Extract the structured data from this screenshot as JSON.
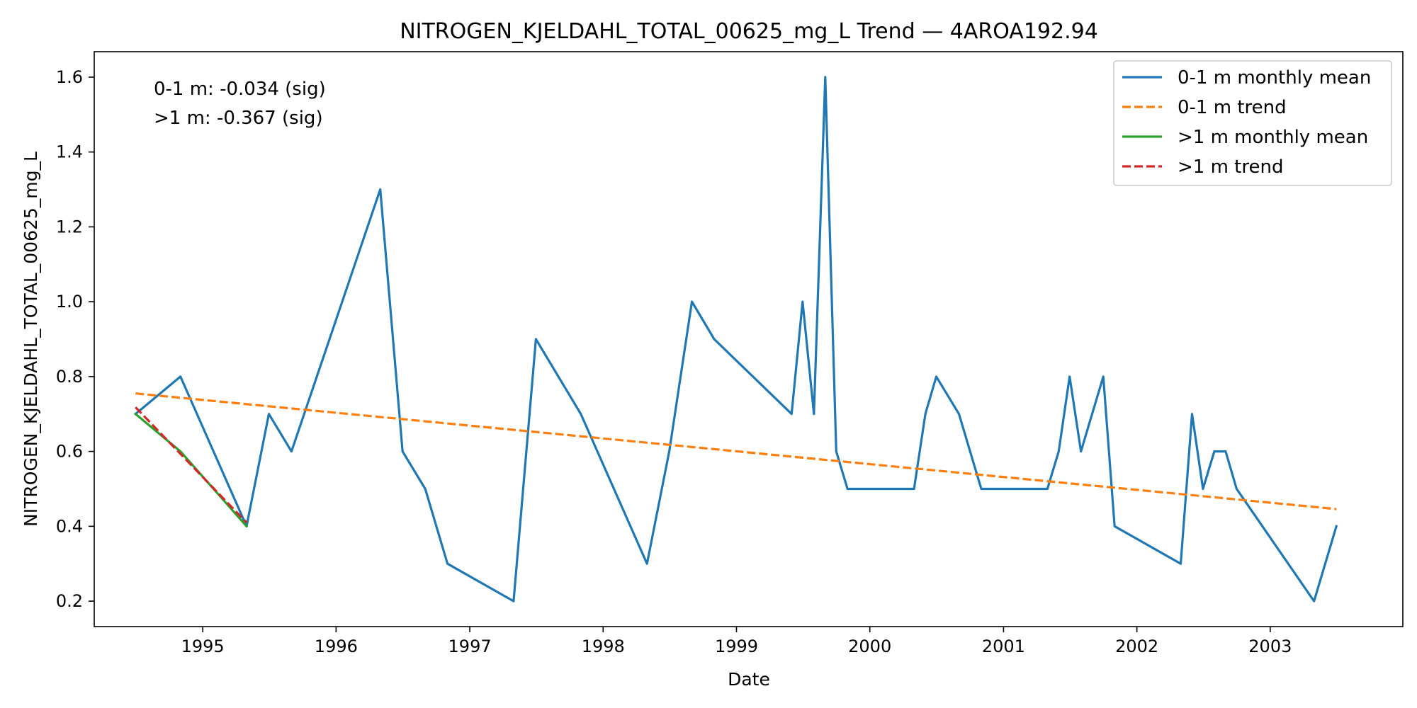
{
  "chart_data": {
    "type": "line",
    "title": "NITROGEN_KJELDAHL_TOTAL_00625_mg_L Trend — 4AROA192.94",
    "xlabel": "Date",
    "ylabel": "NITROGEN_KJELDAHL_TOTAL_00625_mg_L",
    "xlim": [
      "1994-03-10",
      "2003-12-30"
    ],
    "ylim": [
      0.132,
      1.668
    ],
    "x_ticks": [
      "1995",
      "1996",
      "1997",
      "1998",
      "1999",
      "2000",
      "2001",
      "2002",
      "2003"
    ],
    "y_ticks": [
      "0.2",
      "0.4",
      "0.6",
      "0.8",
      "1.0",
      "1.2",
      "1.4",
      "1.6"
    ],
    "grid": false,
    "legend_position": "top-right",
    "annotations": [
      "0-1 m: -0.034 (sig)",
      ">1 m: -0.367 (sig)"
    ],
    "series": [
      {
        "name": "0-1 m monthly mean",
        "color": "#1f77b4",
        "style": "solid",
        "points": [
          [
            "1994-07-01",
            0.7
          ],
          [
            "1994-11-01",
            0.8
          ],
          [
            "1995-05-01",
            0.4
          ],
          [
            "1995-07-01",
            0.7
          ],
          [
            "1995-09-01",
            0.6
          ],
          [
            "1996-05-01",
            1.3
          ],
          [
            "1996-07-01",
            0.6
          ],
          [
            "1996-09-01",
            0.5
          ],
          [
            "1996-11-01",
            0.3
          ],
          [
            "1997-05-01",
            0.2
          ],
          [
            "1997-07-01",
            0.9
          ],
          [
            "1997-11-01",
            0.7
          ],
          [
            "1998-05-01",
            0.3
          ],
          [
            "1998-07-01",
            0.6
          ],
          [
            "1998-09-01",
            1.0
          ],
          [
            "1998-11-01",
            0.9
          ],
          [
            "1999-06-01",
            0.7
          ],
          [
            "1999-07-01",
            1.0
          ],
          [
            "1999-08-01",
            0.7
          ],
          [
            "1999-09-01",
            1.6
          ],
          [
            "1999-10-01",
            0.6
          ],
          [
            "1999-11-01",
            0.5
          ],
          [
            "2000-05-01",
            0.5
          ],
          [
            "2000-06-01",
            0.7
          ],
          [
            "2000-07-01",
            0.8
          ],
          [
            "2000-09-01",
            0.7
          ],
          [
            "2000-11-01",
            0.5
          ],
          [
            "2001-05-01",
            0.5
          ],
          [
            "2001-06-01",
            0.6
          ],
          [
            "2001-07-01",
            0.8
          ],
          [
            "2001-08-01",
            0.6
          ],
          [
            "2001-10-01",
            0.8
          ],
          [
            "2001-11-01",
            0.4
          ],
          [
            "2002-05-01",
            0.3
          ],
          [
            "2002-06-01",
            0.7
          ],
          [
            "2002-07-01",
            0.5
          ],
          [
            "2002-08-01",
            0.6
          ],
          [
            "2002-09-01",
            0.6
          ],
          [
            "2002-10-01",
            0.5
          ],
          [
            "2003-05-01",
            0.2
          ],
          [
            "2003-07-01",
            0.4
          ]
        ]
      },
      {
        "name": "0-1 m trend",
        "color": "#ff7f0e",
        "style": "dashed",
        "points": [
          [
            "1994-07-01",
            0.755
          ],
          [
            "2003-07-01",
            0.446
          ]
        ]
      },
      {
        "name": ">1 m monthly mean",
        "color": "#2ca02c",
        "style": "solid",
        "points": [
          [
            "1994-07-01",
            0.7
          ],
          [
            "1994-11-01",
            0.6
          ],
          [
            "1995-05-01",
            0.4
          ]
        ]
      },
      {
        "name": ">1 m trend",
        "color": "#d62728",
        "style": "dashed",
        "points": [
          [
            "1994-07-01",
            0.718
          ],
          [
            "1995-05-01",
            0.41
          ]
        ]
      }
    ]
  }
}
